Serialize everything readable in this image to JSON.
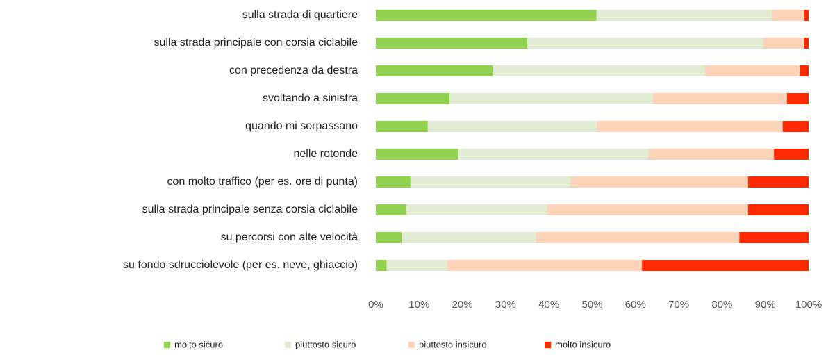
{
  "chart_data": {
    "type": "stacked_barh",
    "categories": [
      "sulla strada di quartiere",
      "sulla strada principale con corsia ciclabile",
      "con precedenza da destra",
      "svoltando a sinistra",
      "quando mi sorpassano",
      "nelle rotonde",
      "con molto traffico (per es. ore di punta)",
      "sulla strada principale senza corsia ciclabile",
      "su percorsi con alte velocità",
      "su fondo sdrucciolevole (per es. neve, ghiaccio)"
    ],
    "series": [
      {
        "name": "molto sicuro",
        "color": "#92d050",
        "values": [
          51,
          35,
          27,
          17,
          12,
          19,
          8,
          7,
          6,
          2.5
        ]
      },
      {
        "name": "piuttosto sicuro",
        "color": "#e2ecd4",
        "values": [
          40.5,
          54.5,
          49,
          47,
          39,
          44,
          37,
          32.5,
          31,
          14
        ]
      },
      {
        "name": "piuttosto insicuro",
        "color": "#fbd3b8",
        "values": [
          7.5,
          9.5,
          22,
          31,
          43,
          29,
          41,
          46.5,
          47,
          45
        ]
      },
      {
        "name": "molto insicuro",
        "color": "#ff2a00",
        "values": [
          1,
          1,
          2,
          5,
          6,
          8,
          14,
          14,
          16,
          38.5
        ]
      }
    ],
    "xlim": [
      0,
      100
    ],
    "xticks": [
      {
        "value": 0,
        "label": "0%"
      },
      {
        "value": 10,
        "label": "10%"
      },
      {
        "value": 20,
        "label": "20%"
      },
      {
        "value": 30,
        "label": "30%"
      },
      {
        "value": 40,
        "label": "40%"
      },
      {
        "value": 50,
        "label": "50%"
      },
      {
        "value": 60,
        "label": "60%"
      },
      {
        "value": 70,
        "label": "70%"
      },
      {
        "value": 80,
        "label": "80%"
      },
      {
        "value": 90,
        "label": "90%"
      },
      {
        "value": 100,
        "label": "100%"
      }
    ],
    "legend": "bottom"
  }
}
